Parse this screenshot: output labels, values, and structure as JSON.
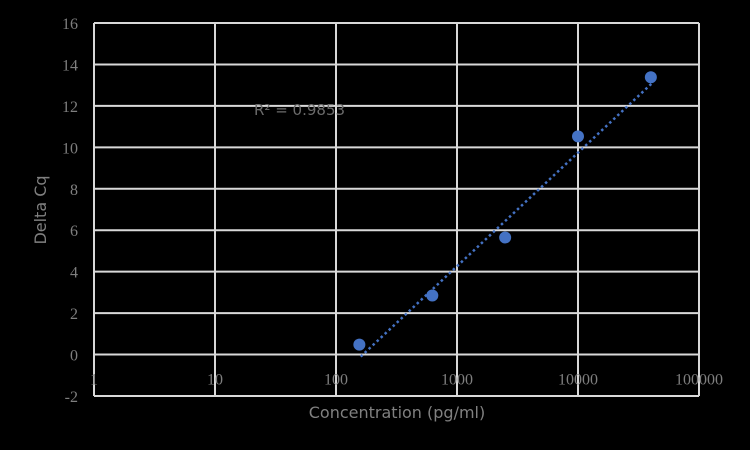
{
  "chart_data": {
    "type": "scatter",
    "title": "",
    "xlabel": "Concentration (pg/ml)",
    "ylabel": "Delta Cq",
    "xscale": "log",
    "xlim": [
      1,
      100000
    ],
    "ylim": [
      -2,
      16
    ],
    "x_ticks": [
      "1",
      "10",
      "100",
      "1000",
      "10000",
      "100000"
    ],
    "y_ticks": [
      "-2",
      "0",
      "2",
      "4",
      "6",
      "8",
      "10",
      "12",
      "14",
      "16"
    ],
    "grid": true,
    "legend": null,
    "series": [
      {
        "name": "Delta Cq",
        "x": [
          156,
          625,
          2500,
          10000,
          40000
        ],
        "y": [
          0.48,
          2.85,
          5.65,
          10.53,
          13.38
        ],
        "color": "#4472c4"
      }
    ],
    "trendline": {
      "type": "log-linear",
      "style": "dotted",
      "color": "#4472c4",
      "x_range": [
        160,
        41000
      ],
      "y_range": [
        -0.1,
        13.1
      ]
    },
    "annotations": [
      {
        "text": "R² = 0.9853",
        "x": 20,
        "y": 11.8
      }
    ],
    "colors": {
      "background": "#000000",
      "grid": "#d9d9d9",
      "text": "#7f7f7f",
      "marker": "#4472c4"
    }
  }
}
